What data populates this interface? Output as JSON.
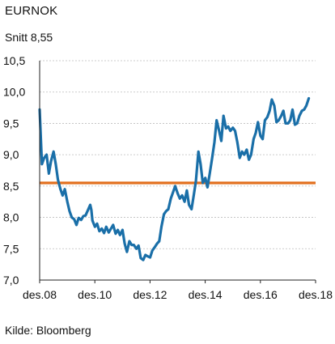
{
  "header": {
    "title": "EURNOK",
    "subtitle": "Snitt 8,55"
  },
  "footer": {
    "source": "Kilde: Bloomberg"
  },
  "colors": {
    "series": "#1a6fa8",
    "average": "#e2701f",
    "grid": "#bdbdbd",
    "axis": "#222222"
  },
  "chart_data": {
    "type": "line",
    "title": "EURNOK",
    "subtitle": "Snitt 8,55",
    "xlabel": "",
    "ylabel": "",
    "ylim": [
      7.0,
      10.5
    ],
    "yticks": [
      7.0,
      7.5,
      8.0,
      8.5,
      9.0,
      9.5,
      10.0,
      10.5
    ],
    "ytick_labels": [
      "7,0",
      "7,5",
      "8,0",
      "8,5",
      "9,0",
      "9,5",
      "10,0",
      "10,5"
    ],
    "xlim": [
      2008.917,
      2018.917
    ],
    "xticks": [
      2008.917,
      2010.917,
      2012.917,
      2014.917,
      2016.917,
      2018.917
    ],
    "xtick_labels": [
      "des.08",
      "des.10",
      "des.12",
      "des.14",
      "des.16",
      "des.18"
    ],
    "grid": {
      "horizontal": true,
      "vertical": false
    },
    "series": [
      {
        "color": "#1a6fa8",
        "points": [
          [
            2008.917,
            9.72
          ],
          [
            2009.0,
            8.85
          ],
          [
            2009.08,
            8.95
          ],
          [
            2009.17,
            9.0
          ],
          [
            2009.25,
            8.7
          ],
          [
            2009.33,
            8.9
          ],
          [
            2009.42,
            9.05
          ],
          [
            2009.5,
            8.85
          ],
          [
            2009.58,
            8.6
          ],
          [
            2009.67,
            8.45
          ],
          [
            2009.75,
            8.35
          ],
          [
            2009.83,
            8.45
          ],
          [
            2009.92,
            8.25
          ],
          [
            2010.0,
            8.1
          ],
          [
            2010.08,
            8.0
          ],
          [
            2010.17,
            7.97
          ],
          [
            2010.25,
            7.88
          ],
          [
            2010.33,
            7.99
          ],
          [
            2010.42,
            7.96
          ],
          [
            2010.5,
            8.02
          ],
          [
            2010.58,
            8.03
          ],
          [
            2010.67,
            8.12
          ],
          [
            2010.75,
            8.2
          ],
          [
            2010.79,
            8.12
          ],
          [
            2010.83,
            7.95
          ],
          [
            2010.92,
            7.85
          ],
          [
            2011.0,
            7.9
          ],
          [
            2011.08,
            7.78
          ],
          [
            2011.17,
            7.82
          ],
          [
            2011.25,
            7.75
          ],
          [
            2011.33,
            7.85
          ],
          [
            2011.42,
            7.76
          ],
          [
            2011.5,
            7.82
          ],
          [
            2011.58,
            7.88
          ],
          [
            2011.67,
            7.74
          ],
          [
            2011.75,
            7.8
          ],
          [
            2011.83,
            7.72
          ],
          [
            2011.92,
            7.8
          ],
          [
            2012.0,
            7.58
          ],
          [
            2012.08,
            7.45
          ],
          [
            2012.17,
            7.62
          ],
          [
            2012.25,
            7.56
          ],
          [
            2012.33,
            7.56
          ],
          [
            2012.42,
            7.5
          ],
          [
            2012.5,
            7.55
          ],
          [
            2012.58,
            7.35
          ],
          [
            2012.67,
            7.32
          ],
          [
            2012.75,
            7.4
          ],
          [
            2012.83,
            7.38
          ],
          [
            2012.92,
            7.36
          ],
          [
            2013.0,
            7.47
          ],
          [
            2013.08,
            7.52
          ],
          [
            2013.17,
            7.58
          ],
          [
            2013.25,
            7.62
          ],
          [
            2013.33,
            7.85
          ],
          [
            2013.42,
            8.05
          ],
          [
            2013.5,
            8.1
          ],
          [
            2013.58,
            8.13
          ],
          [
            2013.67,
            8.3
          ],
          [
            2013.75,
            8.4
          ],
          [
            2013.83,
            8.5
          ],
          [
            2013.92,
            8.38
          ],
          [
            2014.0,
            8.3
          ],
          [
            2014.08,
            8.35
          ],
          [
            2014.17,
            8.25
          ],
          [
            2014.25,
            8.43
          ],
          [
            2014.33,
            8.2
          ],
          [
            2014.42,
            8.13
          ],
          [
            2014.5,
            8.35
          ],
          [
            2014.58,
            8.58
          ],
          [
            2014.67,
            9.05
          ],
          [
            2014.75,
            8.85
          ],
          [
            2014.83,
            8.55
          ],
          [
            2014.92,
            8.63
          ],
          [
            2015.0,
            8.48
          ],
          [
            2015.08,
            8.7
          ],
          [
            2015.17,
            8.95
          ],
          [
            2015.25,
            9.2
          ],
          [
            2015.33,
            9.55
          ],
          [
            2015.42,
            9.38
          ],
          [
            2015.5,
            9.22
          ],
          [
            2015.58,
            9.62
          ],
          [
            2015.67,
            9.42
          ],
          [
            2015.75,
            9.45
          ],
          [
            2015.83,
            9.38
          ],
          [
            2015.92,
            9.43
          ],
          [
            2016.0,
            9.38
          ],
          [
            2016.08,
            9.2
          ],
          [
            2016.17,
            8.95
          ],
          [
            2016.25,
            9.05
          ],
          [
            2016.33,
            9.0
          ],
          [
            2016.42,
            9.08
          ],
          [
            2016.5,
            8.92
          ],
          [
            2016.58,
            9.0
          ],
          [
            2016.67,
            9.25
          ],
          [
            2016.75,
            9.35
          ],
          [
            2016.83,
            9.52
          ],
          [
            2016.92,
            9.3
          ],
          [
            2017.0,
            9.25
          ],
          [
            2017.08,
            9.55
          ],
          [
            2017.17,
            9.6
          ],
          [
            2017.25,
            9.7
          ],
          [
            2017.33,
            9.88
          ],
          [
            2017.42,
            9.78
          ],
          [
            2017.5,
            9.52
          ],
          [
            2017.58,
            9.55
          ],
          [
            2017.67,
            9.62
          ],
          [
            2017.75,
            9.7
          ],
          [
            2017.83,
            9.5
          ],
          [
            2017.92,
            9.5
          ],
          [
            2018.0,
            9.55
          ],
          [
            2018.08,
            9.72
          ],
          [
            2018.17,
            9.48
          ],
          [
            2018.25,
            9.5
          ],
          [
            2018.33,
            9.62
          ],
          [
            2018.42,
            9.7
          ],
          [
            2018.5,
            9.72
          ],
          [
            2018.58,
            9.78
          ],
          [
            2018.67,
            9.9
          ]
        ]
      }
    ],
    "reference_lines": [
      {
        "label": "Snitt 8,55",
        "y": 8.55,
        "color": "#e2701f"
      }
    ]
  }
}
